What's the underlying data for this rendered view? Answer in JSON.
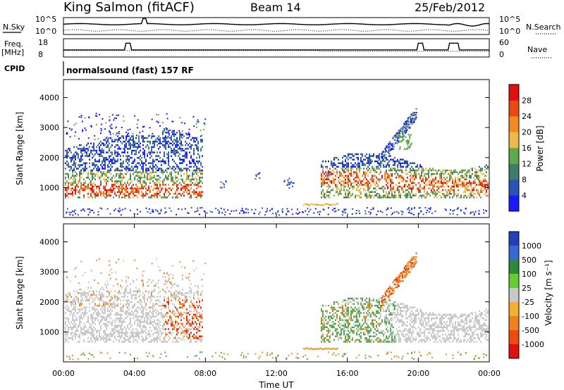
{
  "header": {
    "station": "King Salmon (fitACF)",
    "beam": "Beam 14",
    "date": "25/Feb/2012"
  },
  "strip": {
    "nsky_label": "N.Sky",
    "nsky_top": "10^5",
    "nsky_bottom": "10^0",
    "nsearch_label": "N.Search",
    "nsearch_top": "10^5",
    "nsearch_bottom": "10^0",
    "freq_label": "Freq.",
    "freq_unit": "[MHz]",
    "freq_top": "18",
    "freq_bottom": "8",
    "nave_label": "Nave",
    "nave_top": "60",
    "nave_bottom": "0",
    "cpid_label": "CPID",
    "cpid_text": "normalsound (fast) 157 RF"
  },
  "chart_data": [
    {
      "type": "heatmap",
      "panel": "power",
      "xlabel": "",
      "ylabel": "Slant Range [km]",
      "yticks": [
        "1000",
        "2000",
        "3000",
        "4000"
      ],
      "colorbar_label": "Power [dB]",
      "colorbar_ticks": [
        "4",
        "8",
        "12",
        "16",
        "20",
        "24",
        "28"
      ],
      "colorbar_colors": [
        "#1a1aff",
        "#2a52b8",
        "#3f7d6a",
        "#5fa84d",
        "#f0b84a",
        "#f08a22",
        "#e84a14",
        "#e01010"
      ]
    },
    {
      "type": "heatmap",
      "panel": "velocity",
      "xlabel": "Time UT",
      "ylabel": "Slant Range [km]",
      "yticks": [
        "1000",
        "2000",
        "3000",
        "4000"
      ],
      "xticks": [
        "00:00",
        "04:00",
        "08:00",
        "12:00",
        "16:00",
        "20:00",
        "00:00"
      ],
      "colorbar_label": "Velocity [m s⁻¹]",
      "colorbar_ticks": [
        "1000",
        "500",
        "100",
        "25",
        "-25",
        "-100",
        "-500",
        "-1000"
      ],
      "colorbar_colors": [
        "#2440b8",
        "#3a6ad0",
        "#2e8a3a",
        "#66cc33",
        "#c8c8c8",
        "#f2b030",
        "#f08020",
        "#f04a10",
        "#e01010"
      ]
    }
  ],
  "colors": {
    "gray": "#c8c8c8",
    "blue": "#2a4cc8",
    "green": "#4fa84f",
    "orange": "#f08a22",
    "red": "#e02a10"
  }
}
